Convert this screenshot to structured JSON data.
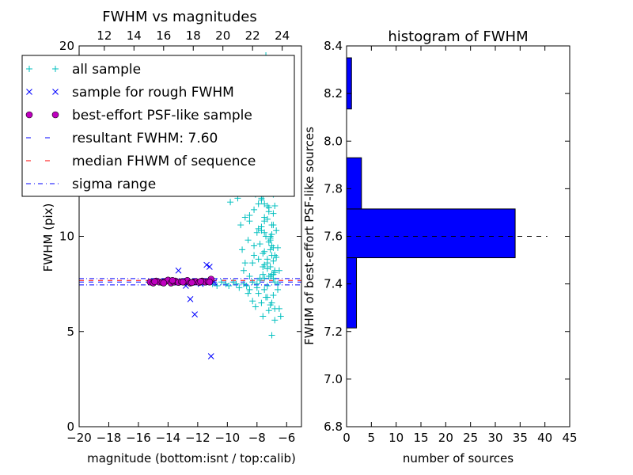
{
  "colors": {
    "all_sample": "#00BFBF",
    "rough_sample": "#0000FF",
    "psf_sample": "#BF00BF",
    "resultant_line": "#0000FF",
    "median_line": "#FF0000",
    "sigma_line": "#0000FF",
    "hist_bar": "#0000FF"
  },
  "chart_data": [
    {
      "type": "scatter",
      "title": "FWHM vs magnitudes",
      "xlabel": "magnitude (bottom:isnt / top:calib)",
      "ylabel": "FWHM (pix)",
      "xlim": [
        -20,
        -5
      ],
      "ylim": [
        0,
        20
      ],
      "top_xlim": [
        10.3,
        25.3
      ],
      "x_ticks": [
        "−20",
        "−18",
        "−16",
        "−14",
        "−12",
        "−10",
        "−8",
        "−6"
      ],
      "x_tick_values": [
        -20,
        -18,
        -16,
        -14,
        -12,
        -10,
        -8,
        -6
      ],
      "top_ticks": [
        "12",
        "14",
        "16",
        "18",
        "20",
        "22",
        "24"
      ],
      "top_tick_values": [
        12,
        14,
        16,
        18,
        20,
        22,
        24
      ],
      "y_ticks": [
        "0",
        "5",
        "10",
        "20"
      ],
      "y_tick_values": [
        0,
        5,
        10,
        20
      ],
      "hlines": {
        "resultant_fwhm": 7.6,
        "median_fwhm": 7.68,
        "sigma_range": [
          7.45,
          7.78
        ]
      },
      "legend": {
        "placement": "top-left",
        "entries": [
          "all sample",
          "sample for rough FWHM",
          "best-effort PSF-like sample",
          "resultant FWHM: 7.60",
          "median FHWM of sequence",
          "sigma range"
        ]
      },
      "series": [
        {
          "name": "all sample",
          "x": [
            -9.8,
            -9.3,
            -9.1,
            -9.0,
            -8.9,
            -8.8,
            -8.7,
            -8.6,
            -8.5,
            -8.5,
            -8.4,
            -8.3,
            -8.2,
            -8.2,
            -8.1,
            -8.0,
            -8.0,
            -7.9,
            -7.9,
            -7.8,
            -7.8,
            -7.7,
            -7.7,
            -7.6,
            -7.6,
            -7.5,
            -7.5,
            -7.4,
            -7.4,
            -7.3,
            -7.3,
            -7.2,
            -7.2,
            -7.1,
            -7.1,
            -7.0,
            -7.0,
            -6.9,
            -6.9,
            -6.8,
            -6.8,
            -6.7,
            -6.7,
            -6.6,
            -6.6,
            -6.5,
            -6.5,
            -6.4,
            -8.6,
            -8.3,
            -8.1,
            -7.9,
            -7.7,
            -7.5,
            -7.3,
            -7.1,
            -6.9,
            -6.8,
            -8.4,
            -8.2,
            -8.0,
            -7.8,
            -7.6,
            -7.4,
            -7.2,
            -7.0,
            -6.9,
            -6.7,
            -8.5,
            -8.1,
            -7.9,
            -7.7,
            -7.5,
            -7.3,
            -7.1,
            -6.9,
            -7.4,
            -7.2,
            -7.0,
            -8.8,
            -8.2,
            -7.6,
            -7.0,
            -6.8,
            -7.8,
            -7.5,
            -7.3,
            -7.1,
            -6.9,
            -7.6,
            -7.2,
            -7.0,
            -7.4,
            -6.8,
            -11.0,
            -10.7,
            -10.4,
            -10.1,
            -9.9,
            -9.6,
            -9.4,
            -9.2,
            -8.9,
            -8.7,
            -8.5,
            -8.3,
            -8.0,
            -7.8,
            -7.5,
            -7.3,
            -7.1,
            -6.9,
            -6.6,
            -7.3,
            -7.0,
            -7.4,
            -7.1,
            -7.6,
            -7.2,
            -7.0,
            -7.7,
            -7.5,
            -7.3,
            -7.1,
            -6.9,
            -7.4,
            -7.2,
            -7.0,
            -6.8,
            -7.6,
            -7.3,
            -7.1,
            -6.9,
            -7.5,
            -7.2,
            -7.0,
            -8.0,
            -7.6,
            -7.2,
            -6.8,
            -7.4,
            -7.0
          ],
          "y": [
            11.8,
            12.0,
            10.6,
            9.3,
            8.2,
            11.0,
            12.3,
            9.8,
            7.9,
            10.8,
            13.0,
            8.6,
            11.4,
            9.0,
            12.5,
            10.2,
            7.3,
            11.7,
            8.8,
            13.4,
            9.6,
            12.0,
            10.5,
            14.2,
            8.4,
            11.0,
            9.2,
            13.8,
            10.0,
            12.6,
            8.6,
            14.6,
            11.3,
            9.8,
            13.1,
            10.6,
            8.0,
            12.2,
            9.4,
            11.6,
            7.6,
            10.3,
            8.9,
            9.4,
            7.2,
            8.2,
            6.2,
            5.8,
            7.0,
            6.6,
            6.3,
            7.0,
            6.5,
            7.2,
            6.8,
            6.4,
            6.9,
            6.2,
            14.0,
            13.0,
            15.2,
            14.6,
            16.0,
            12.8,
            15.5,
            14.2,
            13.4,
            12.4,
            11.1,
            12.2,
            10.4,
            11.9,
            10.2,
            11.6,
            10.0,
            11.2,
            16.6,
            17.1,
            18.0,
            8.6,
            9.5,
            9.1,
            9.0,
            8.2,
            7.8,
            8.5,
            8.8,
            8.4,
            7.8,
            5.8,
            6.1,
            4.8,
            19.5,
            5.6,
            7.5,
            7.4,
            7.6,
            7.5,
            7.4,
            7.6,
            7.5,
            7.3,
            7.5,
            7.4,
            7.2,
            7.6,
            7.5,
            7.7,
            7.8,
            7.4,
            7.9,
            8.0,
            7.5,
            15.8,
            12.5,
            17.0,
            13.6,
            16.3,
            13.9,
            15.0,
            10.3,
            11.7,
            10.9,
            9.9,
            10.6,
            12.9,
            11.5,
            9.5,
            9.0,
            12.1,
            8.3,
            9.3,
            8.7,
            10.8,
            9.7,
            10.1,
            12.7,
            8.0,
            7.9,
            8.1,
            6.8,
            6.5
          ]
        },
        {
          "name": "sample for rough FWHM",
          "x": [
            -13.3,
            -12.8,
            -12.5,
            -12.2,
            -11.8,
            -11.4,
            -11.2,
            -11.1,
            -10.9
          ],
          "y": [
            8.2,
            7.4,
            6.7,
            5.9,
            7.5,
            8.5,
            8.4,
            3.7,
            7.6
          ]
        },
        {
          "name": "best-effort PSF-like sample",
          "x": [
            -15.2,
            -15.0,
            -14.8,
            -14.6,
            -14.4,
            -14.2,
            -14.0,
            -13.8,
            -13.6,
            -13.5,
            -13.3,
            -13.1,
            -12.9,
            -12.7,
            -12.5,
            -12.3,
            -12.1,
            -11.9,
            -11.7,
            -11.5,
            -11.3,
            -11.1,
            -14.9,
            -14.3,
            -13.7,
            -13.0,
            -12.4,
            -11.8,
            -11.2
          ],
          "y": [
            7.6,
            7.55,
            7.65,
            7.6,
            7.58,
            7.62,
            7.7,
            7.55,
            7.6,
            7.65,
            7.58,
            7.62,
            7.6,
            7.68,
            7.55,
            7.6,
            7.62,
            7.58,
            7.65,
            7.6,
            7.62,
            7.75,
            7.62,
            7.55,
            7.68,
            7.6,
            7.57,
            7.63,
            7.6
          ]
        }
      ]
    },
    {
      "type": "bar",
      "orientation": "horizontal",
      "title": "histogram of FWHM",
      "xlabel": "number of sources",
      "ylabel": "FWHM of best-effort PSF-like sources",
      "xlim": [
        0,
        45
      ],
      "ylim": [
        6.8,
        8.4
      ],
      "x_ticks": [
        "0",
        "5",
        "10",
        "15",
        "20",
        "25",
        "30",
        "35",
        "40",
        "45"
      ],
      "x_tick_values": [
        0,
        5,
        10,
        15,
        20,
        25,
        30,
        35,
        40,
        45
      ],
      "y_ticks": [
        "6.8",
        "7.0",
        "7.2",
        "7.4",
        "7.6",
        "7.8",
        "8.0",
        "8.2",
        "8.4"
      ],
      "y_tick_values": [
        6.8,
        7.0,
        7.2,
        7.4,
        7.6,
        7.8,
        8.0,
        8.2,
        8.4
      ],
      "bins": [
        {
          "y0": 7.215,
          "y1": 7.51,
          "count": 2
        },
        {
          "y0": 7.51,
          "y1": 7.715,
          "count": 34
        },
        {
          "y0": 7.715,
          "y1": 7.93,
          "count": 3
        },
        {
          "y0": 8.135,
          "y1": 8.35,
          "count": 1
        }
      ],
      "reference_line": {
        "y": 7.6,
        "x_range": [
          0,
          40.5
        ]
      }
    }
  ]
}
